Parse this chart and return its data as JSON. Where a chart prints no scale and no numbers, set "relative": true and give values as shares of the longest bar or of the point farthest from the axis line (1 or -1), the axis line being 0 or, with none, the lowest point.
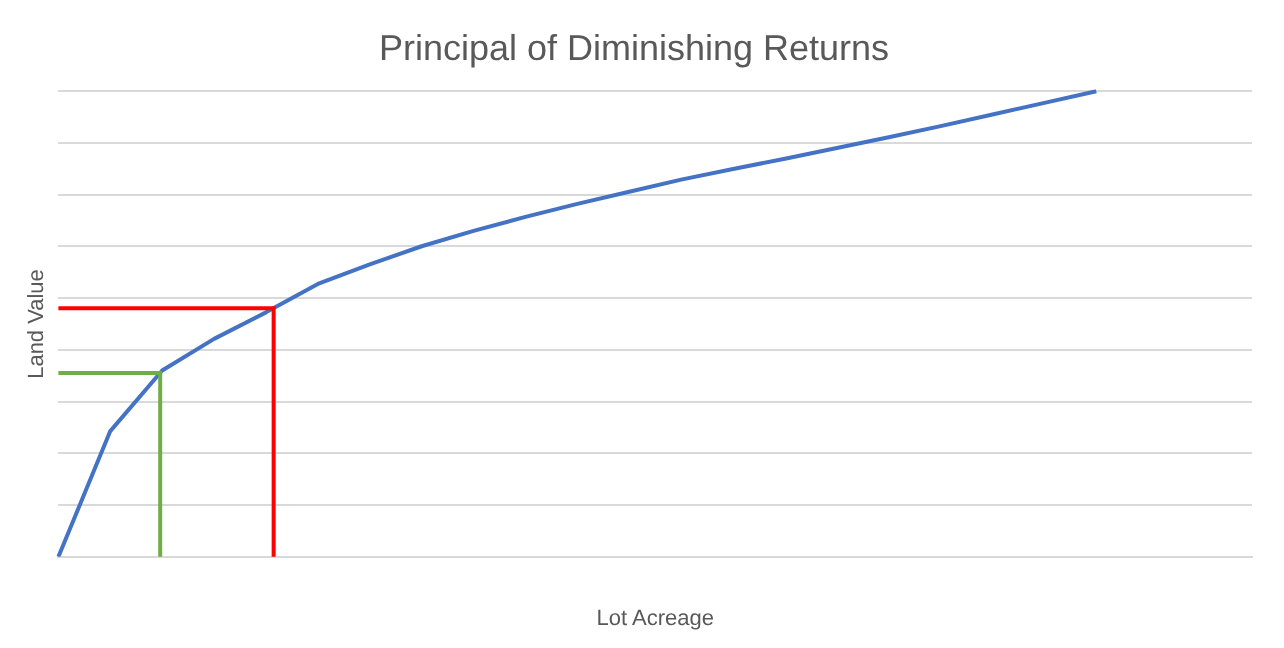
{
  "chart_data": {
    "type": "line",
    "title": "Principal of Diminishing Returns",
    "xlabel": "Lot Acreage",
    "ylabel": "Land Value",
    "relative": true,
    "grid": "y",
    "legend": false,
    "marker": "none",
    "line_style": "solid",
    "categories": [
      null,
      null,
      null,
      null,
      null,
      null,
      null,
      null,
      null,
      null,
      null,
      null,
      null,
      null,
      null,
      null,
      null,
      null,
      null,
      null,
      null,
      null,
      null,
      null
    ],
    "series": [
      {
        "color": "#4472c4",
        "values": [
          0,
          0.27,
          0.4,
          0.468,
          0.525,
          0.586,
          0.628,
          0.667,
          0.7,
          0.73,
          0.758,
          0.784,
          0.81,
          0.833,
          0.855,
          0.878,
          0.901,
          0.925,
          0.95,
          0.975,
          1,
          null,
          null,
          null
        ]
      }
    ],
    "ref_lines": [
      {
        "axis": "y",
        "value": 0.395,
        "color": "#70ad47"
      },
      {
        "axis": "y",
        "value": 0.534,
        "color": "#ff0000"
      }
    ]
  }
}
